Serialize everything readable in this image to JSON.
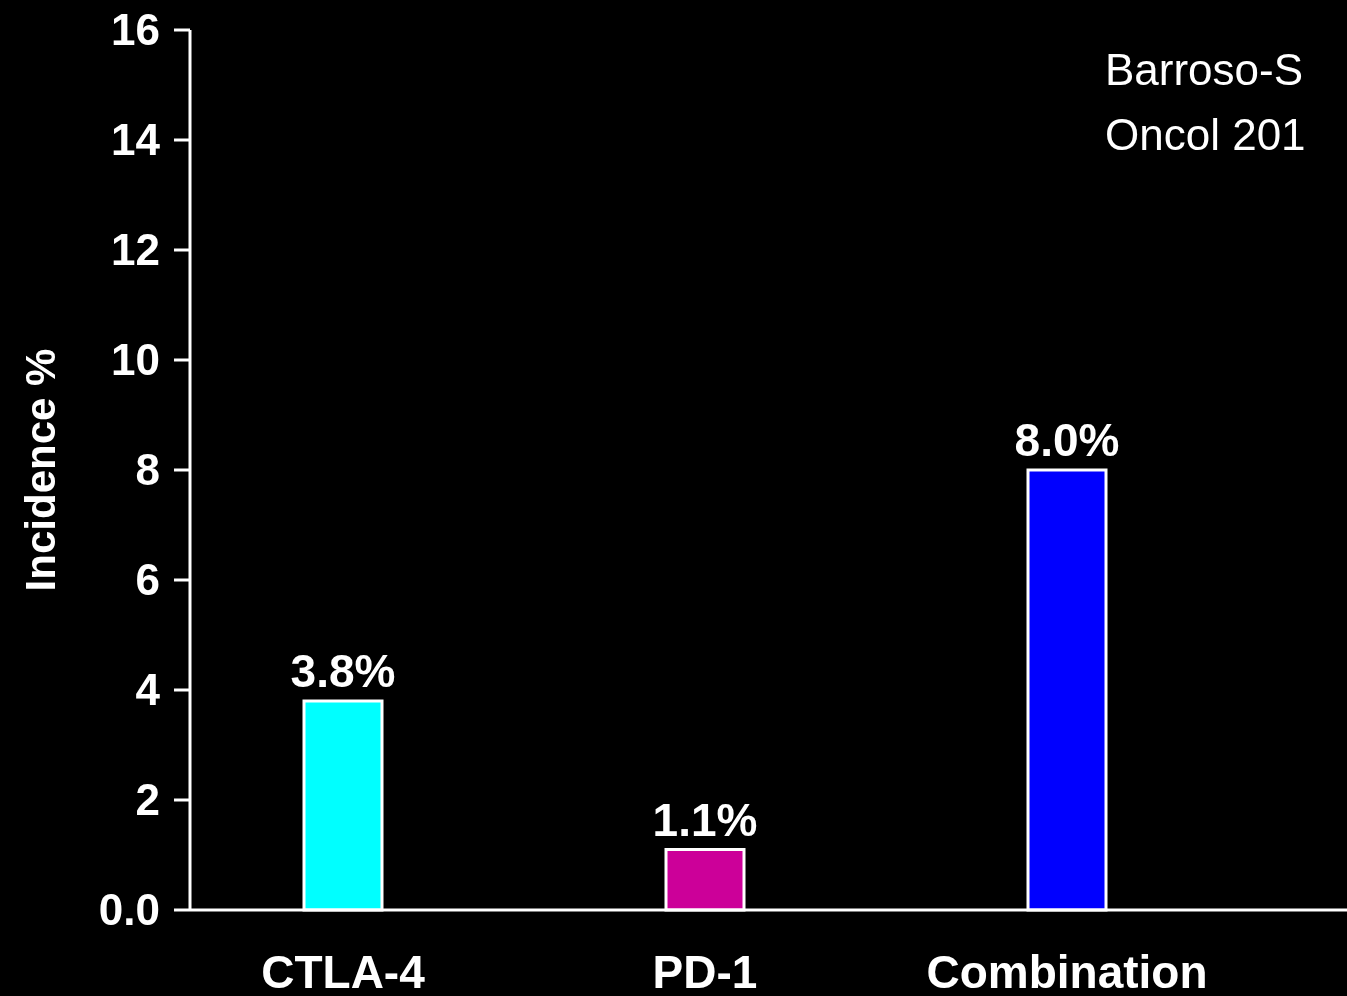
{
  "chart_data": {
    "type": "bar",
    "ylabel": "Incidence %",
    "categories": [
      "CTLA-4",
      "PD-1",
      "Combination"
    ],
    "values": [
      3.8,
      1.1,
      8.0
    ],
    "colors": [
      "#00ffff",
      "#cc0099",
      "#0000ff"
    ],
    "value_labels": [
      "3.8%",
      "1.1%",
      "8.0%"
    ],
    "ylim": [
      0,
      16
    ],
    "yticks": [
      {
        "value": 0,
        "label": "0.0"
      },
      2,
      4,
      6,
      8,
      10,
      12,
      14,
      16
    ],
    "annotations": [
      "Barroso-S",
      "Oncol 201"
    ]
  }
}
